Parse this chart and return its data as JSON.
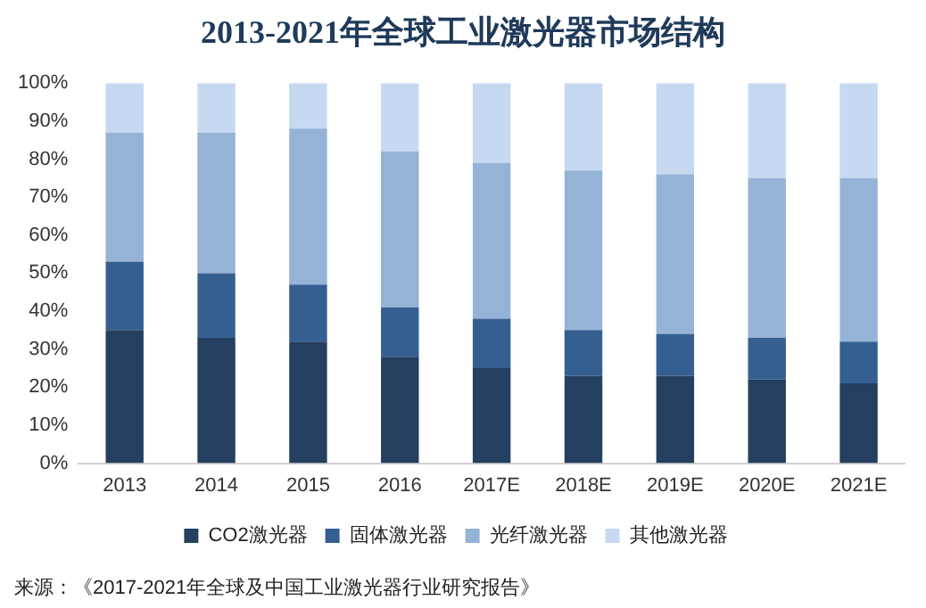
{
  "chart_data": {
    "type": "bar",
    "title": "2013-2021年全球工业激光器市场结构",
    "categories": [
      "2013",
      "2014",
      "2015",
      "2016",
      "2017E",
      "2018E",
      "2019E",
      "2020E",
      "2021E"
    ],
    "series": [
      {
        "name": "CO2激光器",
        "color": "#243f60",
        "values": [
          35,
          33,
          32,
          28,
          25,
          23,
          23,
          22,
          21
        ]
      },
      {
        "name": "固体激光器",
        "color": "#355f91",
        "values": [
          18,
          17,
          15,
          13,
          13,
          12,
          11,
          11,
          11
        ]
      },
      {
        "name": "光纤激光器",
        "color": "#95b3d7",
        "values": [
          34,
          37,
          41,
          41,
          41,
          42,
          42,
          42,
          43
        ]
      },
      {
        "name": "其他激光器",
        "color": "#c6d9f1",
        "values": [
          13,
          13,
          12,
          18,
          21,
          23,
          24,
          25,
          25
        ]
      }
    ],
    "stacked": true,
    "ylim": [
      0,
      100
    ],
    "yticks": [
      {
        "value": 0,
        "label": "0%"
      },
      {
        "value": 10,
        "label": "10%"
      },
      {
        "value": 20,
        "label": "20%"
      },
      {
        "value": 30,
        "label": "30%"
      },
      {
        "value": 40,
        "label": "40%"
      },
      {
        "value": 50,
        "label": "50%"
      },
      {
        "value": 60,
        "label": "60%"
      },
      {
        "value": 70,
        "label": "70%"
      },
      {
        "value": 80,
        "label": "80%"
      },
      {
        "value": 90,
        "label": "90%"
      },
      {
        "value": 100,
        "label": "100%"
      }
    ],
    "grid": false,
    "legend": "bottom",
    "annotations": [
      "来源：《2017-2021年全球及中国工业激光器行业研究报告》"
    ]
  }
}
